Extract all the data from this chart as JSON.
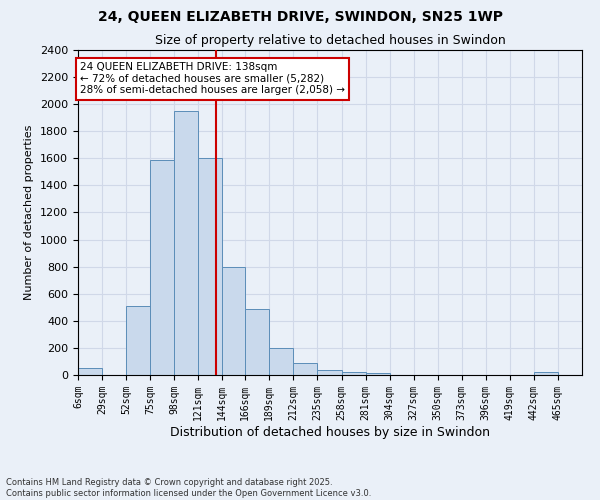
{
  "title_line1": "24, QUEEN ELIZABETH DRIVE, SWINDON, SN25 1WP",
  "title_line2": "Size of property relative to detached houses in Swindon",
  "xlabel": "Distribution of detached houses by size in Swindon",
  "ylabel": "Number of detached properties",
  "footnote": "Contains HM Land Registry data © Crown copyright and database right 2025.\nContains public sector information licensed under the Open Government Licence v3.0.",
  "bin_labels": [
    "6sqm",
    "29sqm",
    "52sqm",
    "75sqm",
    "98sqm",
    "121sqm",
    "144sqm",
    "166sqm",
    "189sqm",
    "212sqm",
    "235sqm",
    "258sqm",
    "281sqm",
    "304sqm",
    "327sqm",
    "350sqm",
    "373sqm",
    "396sqm",
    "419sqm",
    "442sqm",
    "465sqm"
  ],
  "bar_heights": [
    50,
    0,
    510,
    1590,
    1950,
    1600,
    800,
    490,
    200,
    85,
    35,
    25,
    15,
    0,
    0,
    0,
    0,
    0,
    0,
    20,
    0
  ],
  "bar_color": "#c9d9ec",
  "bar_edge_color": "#5b8db8",
  "vline_x": 138,
  "vline_color": "#cc0000",
  "annotation_text": "24 QUEEN ELIZABETH DRIVE: 138sqm\n← 72% of detached houses are smaller (5,282)\n28% of semi-detached houses are larger (2,058) →",
  "annotation_box_color": "#ffffff",
  "annotation_box_edge": "#cc0000",
  "ylim": [
    0,
    2400
  ],
  "yticks": [
    0,
    200,
    400,
    600,
    800,
    1000,
    1200,
    1400,
    1600,
    1800,
    2000,
    2200,
    2400
  ],
  "bg_color": "#eaf0f8",
  "plot_bg_color": "#eaf0f8",
  "grid_color": "#d0d8e8",
  "bin_edges": [
    6,
    29,
    52,
    75,
    98,
    121,
    144,
    166,
    189,
    212,
    235,
    258,
    281,
    304,
    327,
    350,
    373,
    396,
    419,
    442,
    465,
    488
  ]
}
